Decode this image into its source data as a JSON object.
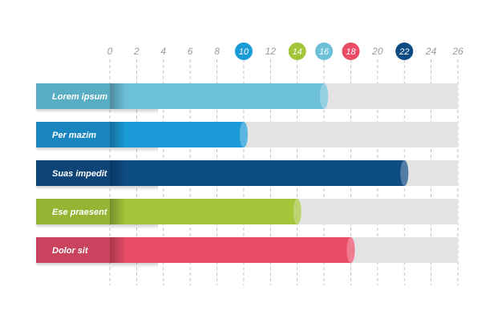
{
  "chart_data": {
    "type": "bar",
    "orientation": "horizontal",
    "categories": [
      "Lorem ipsum",
      "Per mazim",
      "Suas impedit",
      "Ese praesent",
      "Dolor sit"
    ],
    "values": [
      16,
      10,
      22,
      14,
      18
    ],
    "colors": [
      "#6cc0d8",
      "#1a9ad6",
      "#0e4c84",
      "#a4c53a",
      "#e94c67"
    ],
    "label_colors": [
      "#5aaec4",
      "#1a86c0",
      "#0d4478",
      "#95b433",
      "#c9435e"
    ],
    "track_color": "#e3e3e3",
    "xlim": [
      0,
      26
    ],
    "xticks": [
      "0",
      "2",
      "4",
      "6",
      "8",
      "10",
      "12",
      "14",
      "16",
      "18",
      "20",
      "22",
      "24",
      "26"
    ],
    "highlighted_ticks": [
      {
        "value": 10,
        "color": "#1a9ad6"
      },
      {
        "value": 14,
        "color": "#a4c53a"
      },
      {
        "value": 16,
        "color": "#6cc0d8"
      },
      {
        "value": 18,
        "color": "#e94c67"
      },
      {
        "value": 22,
        "color": "#0e4c84"
      }
    ],
    "grid": true,
    "title": "",
    "xlabel": "",
    "ylabel": ""
  }
}
